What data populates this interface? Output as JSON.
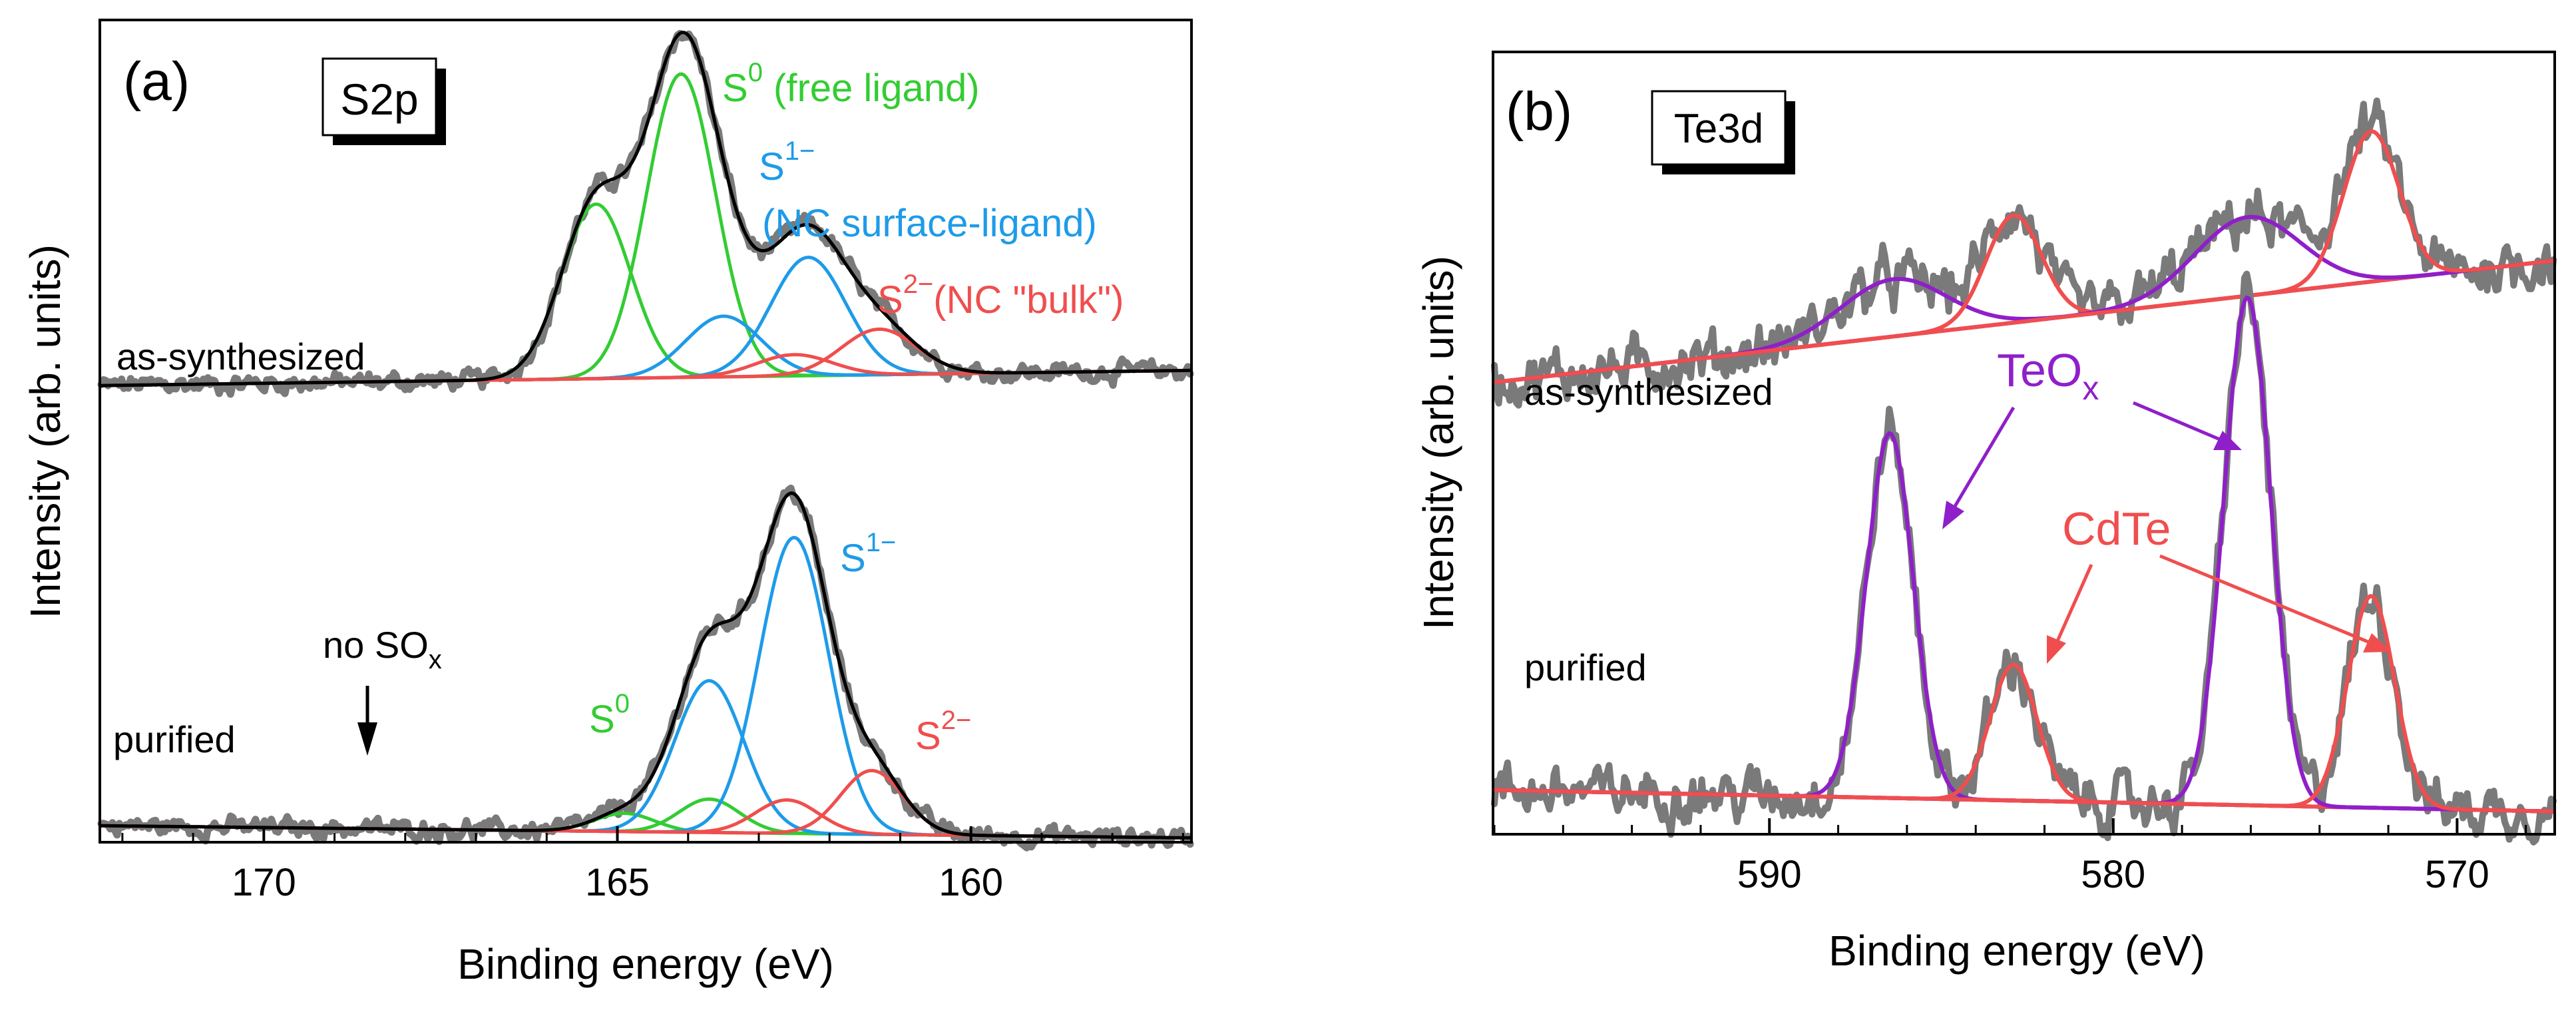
{
  "colors": {
    "data": "#7a7a7a",
    "envelope": "#000000",
    "s0": "#33cc33",
    "s1": "#1e9be8",
    "s2": "#f04e4e",
    "teox": "#8f1fc9",
    "cdte": "#f04e4e",
    "frame": "#000000"
  },
  "chart_data": [
    {
      "type": "line",
      "panel": "(a)",
      "element_label": "S2p",
      "xlabel": "Binding energy (eV)",
      "ylabel": "Intensity (arb. units)",
      "xlim": [
        172.3,
        156.9
      ],
      "x_reversed": true,
      "ylim": [
        -0.1,
        5.3
      ],
      "xticks": [
        170,
        165,
        160
      ],
      "xtick_labels": [
        "170",
        "165",
        "160"
      ],
      "grid": false,
      "series_labels": {
        "top": "as-synthesized",
        "bottom": "purified"
      },
      "annotations": {
        "s0_top": {
          "base": "S",
          "sup": "0",
          "rest": " (free ligand)"
        },
        "s1_top": {
          "base": "S",
          "sup": "1−",
          "rest": ""
        },
        "s1_top_note": "(NC surface-ligand)",
        "s2_top": {
          "base": "S",
          "sup": "2−",
          "rest": "(NC \"bulk\")"
        },
        "s0_bottom": {
          "base": "S",
          "sup": "0",
          "rest": ""
        },
        "s1_bottom": {
          "base": "S",
          "sup": "1−",
          "rest": ""
        },
        "s2_bottom": {
          "base": "S",
          "sup": "2−",
          "rest": ""
        },
        "sox": {
          "base": "no SO",
          "sub": "x"
        }
      },
      "spectra": [
        {
          "name": "as-synthesized",
          "offset": 2.9,
          "background": [
            0.0,
            0.1
          ],
          "envelope": "black",
          "components": [
            {
              "species": "S0",
              "center": 165.3,
              "amp": 1.15,
              "fwhm": 1.15
            },
            {
              "species": "S0",
              "center": 164.1,
              "amp": 2.0,
              "fwhm": 1.15
            },
            {
              "species": "S1-",
              "center": 163.5,
              "amp": 0.4,
              "fwhm": 1.25
            },
            {
              "species": "S1-",
              "center": 162.3,
              "amp": 0.78,
              "fwhm": 1.25
            },
            {
              "species": "S2-",
              "center": 162.5,
              "amp": 0.14,
              "fwhm": 1.25
            },
            {
              "species": "S2-",
              "center": 161.3,
              "amp": 0.3,
              "fwhm": 1.25
            }
          ]
        },
        {
          "name": "purified",
          "offset": 0.0,
          "background": [
            0.0,
            -0.08
          ],
          "envelope": "black",
          "components": [
            {
              "species": "S0",
              "center": 164.9,
              "amp": 0.12,
              "fwhm": 1.0
            },
            {
              "species": "S0",
              "center": 163.7,
              "amp": 0.22,
              "fwhm": 1.0
            },
            {
              "species": "S1-",
              "center": 163.7,
              "amp": 1.0,
              "fwhm": 1.15
            },
            {
              "species": "S1-",
              "center": 162.5,
              "amp": 1.95,
              "fwhm": 1.15
            },
            {
              "species": "S2-",
              "center": 162.6,
              "amp": 0.22,
              "fwhm": 1.05
            },
            {
              "species": "S2-",
              "center": 161.4,
              "amp": 0.42,
              "fwhm": 1.05
            }
          ]
        }
      ]
    },
    {
      "type": "line",
      "panel": "(b)",
      "element_label": "Te3d",
      "xlabel": "Binding energy (eV)",
      "ylabel": "Intensity (arb. units)",
      "xlim": [
        598,
        567.2
      ],
      "x_reversed": true,
      "ylim": [
        -0.15,
        5.3
      ],
      "xticks": [
        590,
        580,
        570
      ],
      "xtick_labels": [
        "590",
        "580",
        "570"
      ],
      "grid": false,
      "series_labels": {
        "top": "as-synthesized",
        "bottom": "purified"
      },
      "annotations": {
        "teox": {
          "base": "TeO",
          "sub": "x"
        },
        "cdte": "CdTe"
      },
      "spectra": [
        {
          "name": "as-synthesized",
          "offset": 3.0,
          "background": [
            0.0,
            0.85
          ],
          "components": [
            {
              "species": "TeOx",
              "center": 586.4,
              "amp": 0.4,
              "fwhm": 3.6
            },
            {
              "species": "CdTe",
              "center": 582.9,
              "amp": 0.75,
              "fwhm": 1.9
            },
            {
              "species": "TeOx",
              "center": 576.1,
              "amp": 0.55,
              "fwhm": 3.6
            },
            {
              "species": "CdTe",
              "center": 572.5,
              "amp": 1.05,
              "fwhm": 1.9
            }
          ]
        },
        {
          "name": "purified",
          "offset": 0.0,
          "background": [
            0.15,
            0.0
          ],
          "components": [
            {
              "species": "TeOx",
              "center": 586.5,
              "amp": 2.55,
              "fwhm": 1.6
            },
            {
              "species": "CdTe",
              "center": 582.9,
              "amp": 0.95,
              "fwhm": 1.6
            },
            {
              "species": "TeOx",
              "center": 576.1,
              "amp": 3.55,
              "fwhm": 1.6
            },
            {
              "species": "CdTe",
              "center": 572.5,
              "amp": 1.48,
              "fwhm": 1.6
            }
          ]
        }
      ]
    }
  ]
}
